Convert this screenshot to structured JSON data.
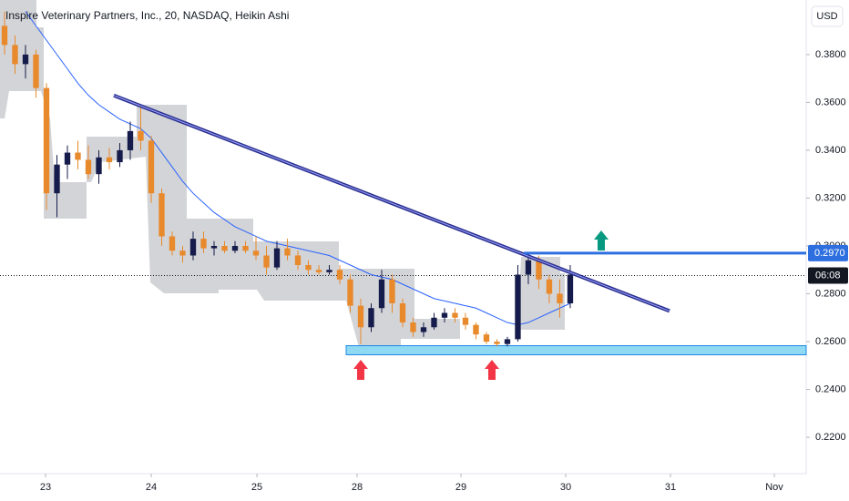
{
  "chart_data": {
    "type": "candlestick",
    "title": "Inspire Veterinary Partners, Inc., 20, NASDAQ, Heikin Ashi",
    "currency": "USD",
    "x": [
      0,
      1,
      2,
      3,
      4,
      5,
      6,
      7,
      8,
      9,
      10,
      11,
      12,
      13,
      14,
      15,
      16,
      17,
      18,
      19,
      20,
      21,
      22,
      23,
      24,
      25,
      26,
      27,
      28,
      29,
      30,
      31,
      32,
      33,
      34,
      35,
      36,
      37,
      38,
      39,
      40,
      41,
      42,
      43,
      44,
      45,
      46,
      47,
      48,
      49,
      50,
      51,
      52,
      53,
      54
    ],
    "open": [
      0.392,
      0.384,
      0.376,
      0.38,
      0.366,
      0.322,
      0.334,
      0.339,
      0.336,
      0.33,
      0.337,
      0.335,
      0.34,
      0.348,
      0.344,
      0.322,
      0.304,
      0.298,
      0.296,
      0.303,
      0.299,
      0.3,
      0.298,
      0.3,
      0.298,
      0.296,
      0.291,
      0.299,
      0.296,
      0.292,
      0.29,
      0.289,
      0.29,
      0.286,
      0.275,
      0.266,
      0.274,
      0.286,
      0.276,
      0.268,
      0.264,
      0.266,
      0.27,
      0.272,
      0.27,
      0.267,
      0.263,
      0.26,
      0.259,
      0.261,
      0.288,
      0.294,
      0.286,
      0.28,
      0.276
    ],
    "high": [
      0.398,
      0.388,
      0.384,
      0.382,
      0.368,
      0.338,
      0.342,
      0.344,
      0.342,
      0.34,
      0.341,
      0.343,
      0.352,
      0.358,
      0.346,
      0.324,
      0.306,
      0.3,
      0.306,
      0.306,
      0.302,
      0.302,
      0.302,
      0.302,
      0.304,
      0.3,
      0.302,
      0.303,
      0.298,
      0.294,
      0.292,
      0.292,
      0.292,
      0.288,
      0.278,
      0.276,
      0.29,
      0.288,
      0.278,
      0.27,
      0.268,
      0.272,
      0.274,
      0.274,
      0.272,
      0.268,
      0.264,
      0.261,
      0.262,
      0.292,
      0.297,
      0.296,
      0.288,
      0.286,
      0.292
    ],
    "low": [
      0.38,
      0.372,
      0.37,
      0.362,
      0.315,
      0.312,
      0.328,
      0.332,
      0.328,
      0.326,
      0.332,
      0.333,
      0.336,
      0.34,
      0.318,
      0.3,
      0.296,
      0.293,
      0.294,
      0.297,
      0.296,
      0.297,
      0.297,
      0.297,
      0.294,
      0.288,
      0.29,
      0.294,
      0.29,
      0.288,
      0.288,
      0.288,
      0.284,
      0.272,
      0.259,
      0.264,
      0.272,
      0.272,
      0.266,
      0.262,
      0.262,
      0.265,
      0.268,
      0.268,
      0.265,
      0.261,
      0.259,
      0.258,
      0.258,
      0.26,
      0.284,
      0.282,
      0.276,
      0.27,
      0.274
    ],
    "close": [
      0.384,
      0.376,
      0.38,
      0.366,
      0.322,
      0.334,
      0.339,
      0.336,
      0.33,
      0.337,
      0.335,
      0.34,
      0.348,
      0.344,
      0.322,
      0.304,
      0.298,
      0.296,
      0.303,
      0.299,
      0.3,
      0.298,
      0.3,
      0.298,
      0.296,
      0.291,
      0.299,
      0.296,
      0.292,
      0.29,
      0.289,
      0.29,
      0.286,
      0.275,
      0.266,
      0.274,
      0.286,
      0.276,
      0.268,
      0.264,
      0.266,
      0.27,
      0.272,
      0.27,
      0.267,
      0.263,
      0.26,
      0.259,
      0.261,
      0.288,
      0.294,
      0.286,
      0.28,
      0.276,
      0.288
    ],
    "up_color": "#151b4a",
    "down_color": "#e8892b",
    "moving_average": {
      "color": "#2962ff",
      "values": [
        null,
        null,
        0.398,
        0.392,
        0.386,
        0.38,
        0.374,
        0.368,
        0.363,
        0.359,
        0.356,
        0.353,
        0.351,
        0.349,
        0.345,
        0.339,
        0.333,
        0.327,
        0.322,
        0.318,
        0.314,
        0.311,
        0.308,
        0.306,
        0.304,
        0.302,
        0.301,
        0.3,
        0.299,
        0.298,
        0.297,
        0.296,
        0.294,
        0.292,
        0.29,
        0.288,
        0.287,
        0.286,
        0.284,
        0.282,
        0.28,
        0.278,
        0.277,
        0.276,
        0.275,
        0.274,
        0.272,
        0.27,
        0.268,
        0.267,
        0.268,
        0.27,
        0.272,
        0.274,
        0.276
      ]
    },
    "trendline": {
      "x": [
        10.43,
        63.48
      ],
      "y": [
        0.3629,
        0.2728
      ],
      "color": "#2b2f8f"
    },
    "resistance": {
      "value": 0.297,
      "label": "0.2970",
      "x_start": 49.57,
      "color": "#2e6fe0"
    },
    "support_zone": {
      "ylim": [
        0.2545,
        0.2583
      ],
      "x_start": 32.61,
      "color": "#8fd9f2"
    },
    "last_price": 0.2876,
    "countdown": "06:08",
    "xlim": [
      -0.435,
      76.09
    ],
    "xticks": [
      {
        "value": 3.91,
        "label": "23"
      },
      {
        "value": 14,
        "label": "24"
      },
      {
        "value": 24.09,
        "label": "25"
      },
      {
        "value": 33.65,
        "label": "28"
      },
      {
        "value": 43.57,
        "label": "29"
      },
      {
        "value": 53.57,
        "label": "30"
      },
      {
        "value": 63.57,
        "label": "31"
      },
      {
        "value": 73.48,
        "label": "Nov"
      }
    ],
    "ylim": [
      0.2048,
      0.4028
    ],
    "yticks": [
      {
        "value": 0.38,
        "label": "0.3800"
      },
      {
        "value": 0.36,
        "label": "0.3600"
      },
      {
        "value": 0.34,
        "label": "0.3400"
      },
      {
        "value": 0.32,
        "label": "0.3200"
      },
      {
        "value": 0.3,
        "label": "0.3000"
      },
      {
        "value": 0.28,
        "label": "0.2800"
      },
      {
        "value": 0.26,
        "label": "0.2600"
      },
      {
        "value": 0.24,
        "label": "0.2400"
      },
      {
        "value": 0.22,
        "label": "0.2200"
      }
    ]
  }
}
